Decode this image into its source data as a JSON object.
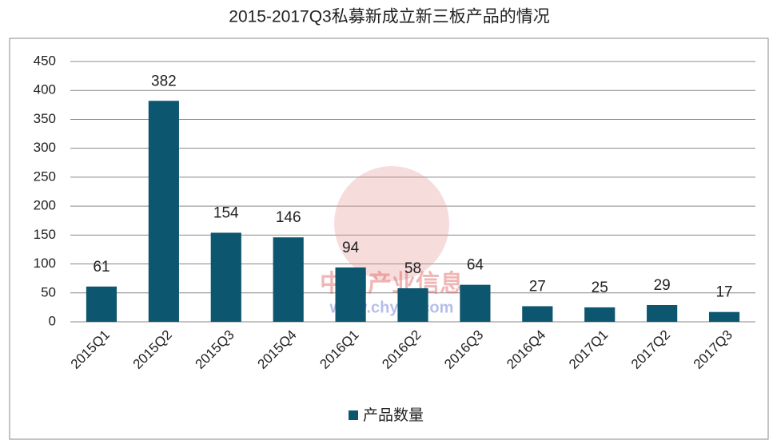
{
  "chart_data": {
    "type": "bar",
    "title": "2015-2017Q3私募新成立新三板产品的情况",
    "categories": [
      "2015Q1",
      "2015Q2",
      "2015Q3",
      "2015Q4",
      "2016Q1",
      "2016Q2",
      "2016Q3",
      "2016Q4",
      "2017Q1",
      "2017Q2",
      "2017Q3"
    ],
    "series": [
      {
        "name": "产品数量",
        "color": "#0d5670",
        "values": [
          61,
          382,
          154,
          146,
          94,
          58,
          64,
          27,
          25,
          29,
          17
        ]
      }
    ],
    "ylim": [
      0,
      450
    ],
    "yticks": [
      0,
      50,
      100,
      150,
      200,
      250,
      300,
      350,
      400,
      450
    ],
    "grid": true,
    "legend": "bottom",
    "watermark": [
      "中国产业信息",
      "www.chyxx.com"
    ]
  }
}
